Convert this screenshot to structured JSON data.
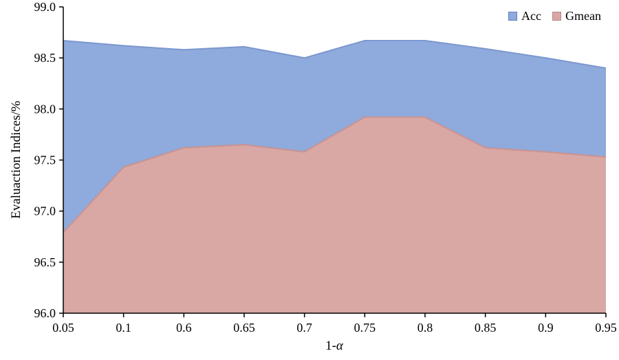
{
  "chart_data": {
    "type": "area",
    "categories": [
      "0.05",
      "0.1",
      "0.6",
      "0.65",
      "0.7",
      "0.75",
      "0.8",
      "0.85",
      "0.9",
      "0.95"
    ],
    "series": [
      {
        "name": "Acc",
        "values": [
          98.67,
          98.62,
          98.58,
          98.61,
          98.5,
          98.67,
          98.67,
          98.59,
          98.5,
          98.4
        ],
        "fill": "#8faadc",
        "line": "#7b97cf",
        "legend_border": "#5b7fbe"
      },
      {
        "name": "Gmean",
        "values": [
          96.79,
          97.43,
          97.62,
          97.65,
          97.58,
          97.92,
          97.92,
          97.62,
          97.58,
          97.53
        ],
        "fill": "#d9a7a4",
        "line": "#c9938f",
        "legend_border": "#b98984"
      }
    ],
    "title": "",
    "xlabel": "1-α",
    "xlabel_prefix": "1-",
    "xlabel_symbol": "α",
    "ylabel": "Evaluaction Indices/%",
    "ylim": [
      96.0,
      99.0
    ],
    "yticks": [
      "96.0",
      "96.5",
      "97.0",
      "97.5",
      "98.0",
      "98.5",
      "99.0"
    ],
    "grid": false,
    "legend_position": "top-right",
    "axis_color": "#000000"
  }
}
